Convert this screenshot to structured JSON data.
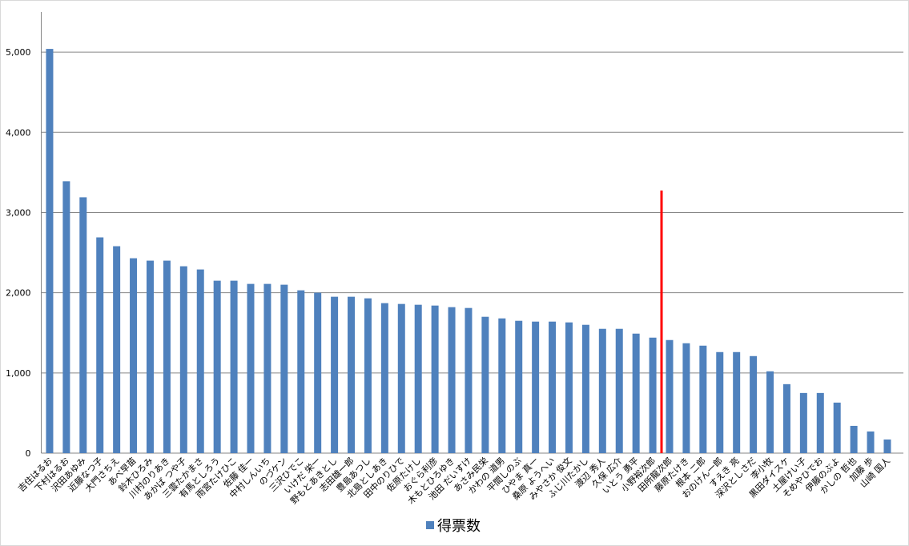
{
  "chart_data": {
    "type": "bar",
    "categories": [
      "吉住はるお",
      "下村はるお",
      "沢田あゆみ",
      "近藤なつ子",
      "大門さちえ",
      "あべ早苗",
      "鈴木ひろみ",
      "川村のりあき",
      "あかば つや子",
      "三雲たかまさ",
      "有馬としろう",
      "雨宮たけひこ",
      "佐藤 佳一",
      "中村しんいち",
      "のづケン",
      "三沢ひでこ",
      "いけだ 栄一",
      "野もとあきとし",
      "志田雄一郎",
      "豊島あつし",
      "北島としあき",
      "田中のりひで",
      "佐原たけし",
      "おぐら利彦",
      "木もとひろゆき",
      "池田 だいすけ",
      "あさみ民栄",
      "かわの 道男",
      "平間しのぶ",
      "ひやま 真一",
      "桑原 ようへい",
      "みやさか 俊文",
      "ふじ川たかし",
      "渡辺 秀人",
      "久保 広介",
      "いとう 勇平",
      "小野裕次郎",
      "田所龍次郎",
      "藤原たけき",
      "根本 二郎",
      "おのけん一郎",
      "すえき 亮",
      "深沢としさだ",
      "李小牧",
      "黒田ダイスケ",
      "土屋けい子",
      "そめやひでお",
      "伊藤のぶよ",
      "かしの 哲也",
      "加藤 歩",
      "山崎 国人"
    ],
    "series": [
      {
        "name": "得票数",
        "color": "#4f81bd",
        "values": [
          5040,
          3390,
          3190,
          2690,
          2580,
          2430,
          2400,
          2400,
          2330,
          2290,
          2150,
          2150,
          2110,
          2110,
          2100,
          2030,
          2000,
          1950,
          1950,
          1930,
          1870,
          1860,
          1850,
          1840,
          1820,
          1810,
          1700,
          1680,
          1650,
          1640,
          1640,
          1630,
          1600,
          1550,
          1550,
          1490,
          1440,
          1410,
          1370,
          1340,
          1260,
          1260,
          1210,
          1020,
          860,
          750,
          750,
          630,
          340,
          270,
          170
        ]
      }
    ],
    "ylim": [
      0,
      5500
    ],
    "yticks": [
      0,
      {
        "value": 1000,
        "label": "1,000"
      },
      {
        "value": 2000,
        "label": "2,000"
      },
      {
        "value": 3000,
        "label": "3,000"
      },
      {
        "value": 4000,
        "label": "4,000"
      },
      {
        "value": 5000,
        "label": "5,000"
      }
    ],
    "grid": true,
    "legend": "bottom"
  }
}
